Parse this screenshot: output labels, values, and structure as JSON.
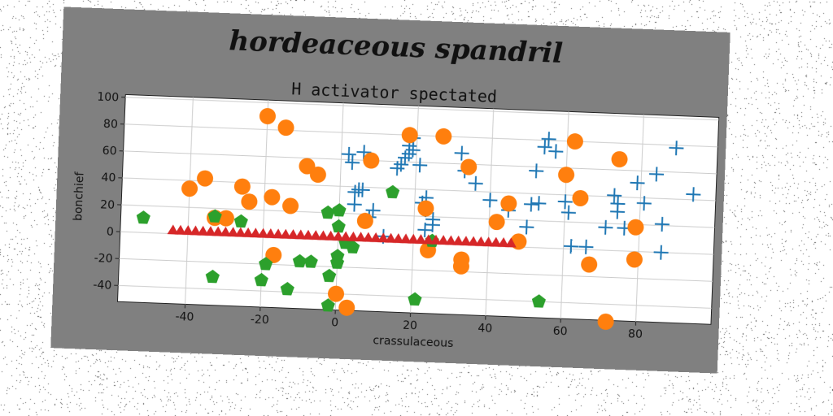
{
  "suptitle": "hordeaceous spandril",
  "chart_data": {
    "type": "scatter",
    "title": "H activator spectated",
    "xlabel": "crassulaceous",
    "ylabel": "bonchief",
    "xlim": [
      -58,
      100
    ],
    "ylim": [
      -52,
      102
    ],
    "xticks": [
      -40,
      -20,
      0,
      20,
      40,
      60,
      80
    ],
    "yticks": [
      -40,
      -20,
      0,
      20,
      40,
      60,
      80,
      100
    ],
    "grid": true,
    "legend": "none",
    "series": [
      {
        "marker": "plus",
        "color": "#1f77b4",
        "points": [
          [
            2,
            64
          ],
          [
            3,
            58
          ],
          [
            6,
            66
          ],
          [
            4,
            36
          ],
          [
            5,
            38
          ],
          [
            6,
            38
          ],
          [
            4,
            27
          ],
          [
            8,
            18
          ],
          [
            9,
            23
          ],
          [
            12,
            4
          ],
          [
            15,
            55
          ],
          [
            16,
            58
          ],
          [
            17,
            63
          ],
          [
            18,
            66
          ],
          [
            18,
            72
          ],
          [
            19,
            78
          ],
          [
            19,
            69
          ],
          [
            21,
            58
          ],
          [
            22,
            30
          ],
          [
            23,
            34
          ],
          [
            23,
            25
          ],
          [
            23,
            10
          ],
          [
            25,
            14
          ],
          [
            25,
            18
          ],
          [
            32,
            68
          ],
          [
            33,
            55
          ],
          [
            36,
            46
          ],
          [
            40,
            34
          ],
          [
            45,
            27
          ],
          [
            50,
            15
          ],
          [
            51,
            32
          ],
          [
            53,
            33
          ],
          [
            52,
            57
          ],
          [
            54,
            75
          ],
          [
            55,
            81
          ],
          [
            57,
            72
          ],
          [
            60,
            35
          ],
          [
            61,
            27
          ],
          [
            62,
            2
          ],
          [
            66,
            2
          ],
          [
            71,
            17
          ],
          [
            73,
            41
          ],
          [
            74,
            29
          ],
          [
            74,
            35
          ],
          [
            76,
            17
          ],
          [
            79,
            51
          ],
          [
            81,
            36
          ],
          [
            84,
            58
          ],
          [
            86,
            21
          ],
          [
            86,
            0
          ],
          [
            89,
            78
          ],
          [
            94,
            44
          ]
        ]
      },
      {
        "marker": "circle",
        "color": "#ff7f0e",
        "points": [
          [
            -20,
            90
          ],
          [
            -15,
            82
          ],
          [
            -40,
            34
          ],
          [
            -36,
            42
          ],
          [
            -26,
            37
          ],
          [
            -24,
            26
          ],
          [
            -33,
            13
          ],
          [
            -30,
            13
          ],
          [
            -18,
            30
          ],
          [
            -13,
            24
          ],
          [
            -9,
            54
          ],
          [
            -6,
            48
          ],
          [
            -17,
            -13
          ],
          [
            8,
            60
          ],
          [
            7,
            15
          ],
          [
            0,
            -40
          ],
          [
            3,
            -50
          ],
          [
            18,
            80
          ],
          [
            23,
            26
          ],
          [
            24,
            -5
          ],
          [
            27,
            80
          ],
          [
            33,
            -16
          ],
          [
            33,
            -11
          ],
          [
            34,
            58
          ],
          [
            42,
            18
          ],
          [
            45,
            32
          ],
          [
            48,
            4
          ],
          [
            60,
            55
          ],
          [
            62,
            80
          ],
          [
            64,
            38
          ],
          [
            67,
            -11
          ],
          [
            72,
            -53
          ],
          [
            74,
            68
          ],
          [
            79,
            18
          ],
          [
            79,
            -6
          ]
        ]
      },
      {
        "marker": "pentagon",
        "color": "#2ca02c",
        "points": [
          [
            -52,
            11
          ],
          [
            -33,
            14
          ],
          [
            -26,
            11
          ],
          [
            -33,
            -31
          ],
          [
            -20,
            -32
          ],
          [
            -19,
            -20
          ],
          [
            -13,
            -38
          ],
          [
            -7,
            -17
          ],
          [
            -10,
            -17
          ],
          [
            -3,
            20
          ],
          [
            -2,
            -27
          ],
          [
            -2,
            -49
          ],
          [
            0,
            -12
          ],
          [
            0,
            -17
          ],
          [
            0,
            10
          ],
          [
            0,
            22
          ],
          [
            2,
            -2
          ],
          [
            4,
            -5
          ],
          [
            14,
            37
          ],
          [
            21,
            -42
          ],
          [
            25,
            2
          ],
          [
            54,
            -40
          ]
        ]
      },
      {
        "marker": "triangle",
        "color": "#d62728",
        "points": [
          [
            -44,
            2
          ],
          [
            -42,
            2
          ],
          [
            -40,
            2
          ],
          [
            -38,
            2
          ],
          [
            -36,
            2
          ],
          [
            -34,
            2
          ],
          [
            -32,
            2
          ],
          [
            -30,
            2
          ],
          [
            -28,
            2
          ],
          [
            -26,
            2
          ],
          [
            -24,
            2
          ],
          [
            -22,
            2
          ],
          [
            -20,
            2
          ],
          [
            -18,
            2
          ],
          [
            -16,
            2
          ],
          [
            -14,
            2
          ],
          [
            -12,
            2
          ],
          [
            -10,
            2
          ],
          [
            -8,
            2
          ],
          [
            -6,
            2
          ],
          [
            -4,
            2
          ],
          [
            -2,
            2
          ],
          [
            0,
            2
          ],
          [
            2,
            2
          ],
          [
            4,
            2
          ],
          [
            6,
            2
          ],
          [
            8,
            2
          ],
          [
            10,
            2
          ],
          [
            12,
            2
          ],
          [
            14,
            2
          ],
          [
            16,
            2
          ],
          [
            18,
            2
          ],
          [
            20,
            2
          ],
          [
            22,
            2
          ],
          [
            24,
            2
          ],
          [
            26,
            2
          ],
          [
            28,
            2
          ],
          [
            30,
            2
          ],
          [
            32,
            2
          ],
          [
            34,
            2
          ],
          [
            36,
            2
          ],
          [
            38,
            2
          ],
          [
            40,
            2
          ],
          [
            42,
            2
          ],
          [
            44,
            2
          ],
          [
            46,
            2
          ]
        ]
      }
    ]
  }
}
